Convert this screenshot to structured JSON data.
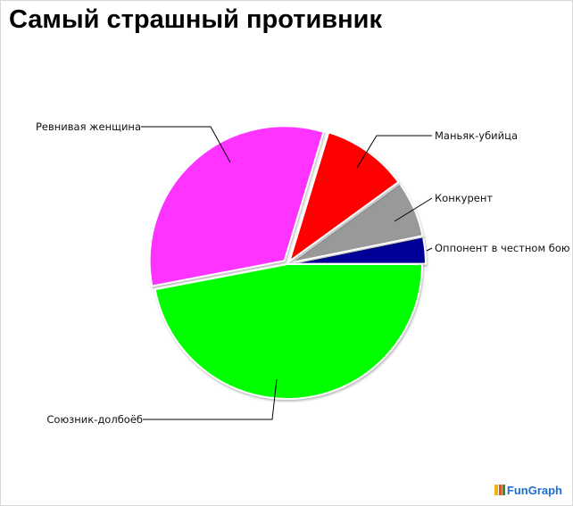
{
  "chart_data": {
    "type": "pie",
    "title": "Самый страшный противник",
    "slices": [
      {
        "label": "Оппонент в честном бою",
        "value": 3.2,
        "color": "#000099"
      },
      {
        "label": "Конкурент",
        "value": 6.8,
        "color": "#999999"
      },
      {
        "label": "Маньяк-убийца",
        "value": 10.3,
        "color": "#ff0000"
      },
      {
        "label": "Ревнивая женщина",
        "value": 32.7,
        "color": "#ff33ff"
      },
      {
        "label": "Союзник-долбоёб",
        "value": 47.0,
        "color": "#00ff00"
      }
    ],
    "legend": "none"
  },
  "logo": {
    "text": "FunGraph"
  }
}
